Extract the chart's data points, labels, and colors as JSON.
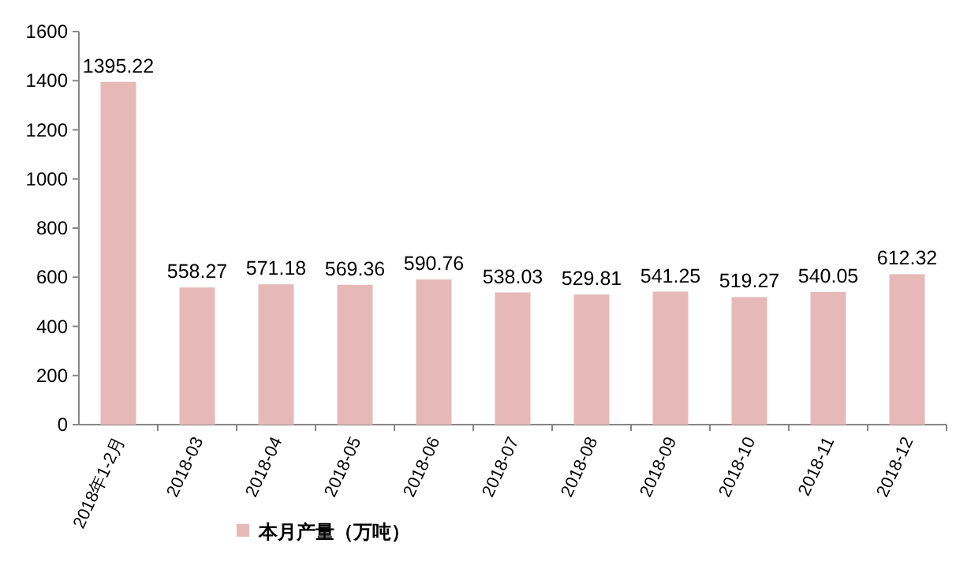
{
  "chart_data": {
    "type": "bar",
    "categories": [
      "2018年1-2月",
      "2018-03",
      "2018-04",
      "2018-05",
      "2018-06",
      "2018-07",
      "2018-08",
      "2018-09",
      "2018-10",
      "2018-11",
      "2018-12"
    ],
    "series": [
      {
        "name": "本月产量（万吨）",
        "color": "#e6b9b8",
        "values": [
          1395.22,
          558.27,
          571.18,
          569.36,
          590.76,
          538.03,
          529.81,
          541.25,
          519.27,
          540.05,
          612.32
        ]
      }
    ],
    "ylim": [
      0,
      1600
    ],
    "yticks": [
      0,
      200,
      400,
      600,
      800,
      1000,
      1200,
      1400,
      1600
    ],
    "data_labels": true,
    "legend": "bottom",
    "grid": false
  }
}
